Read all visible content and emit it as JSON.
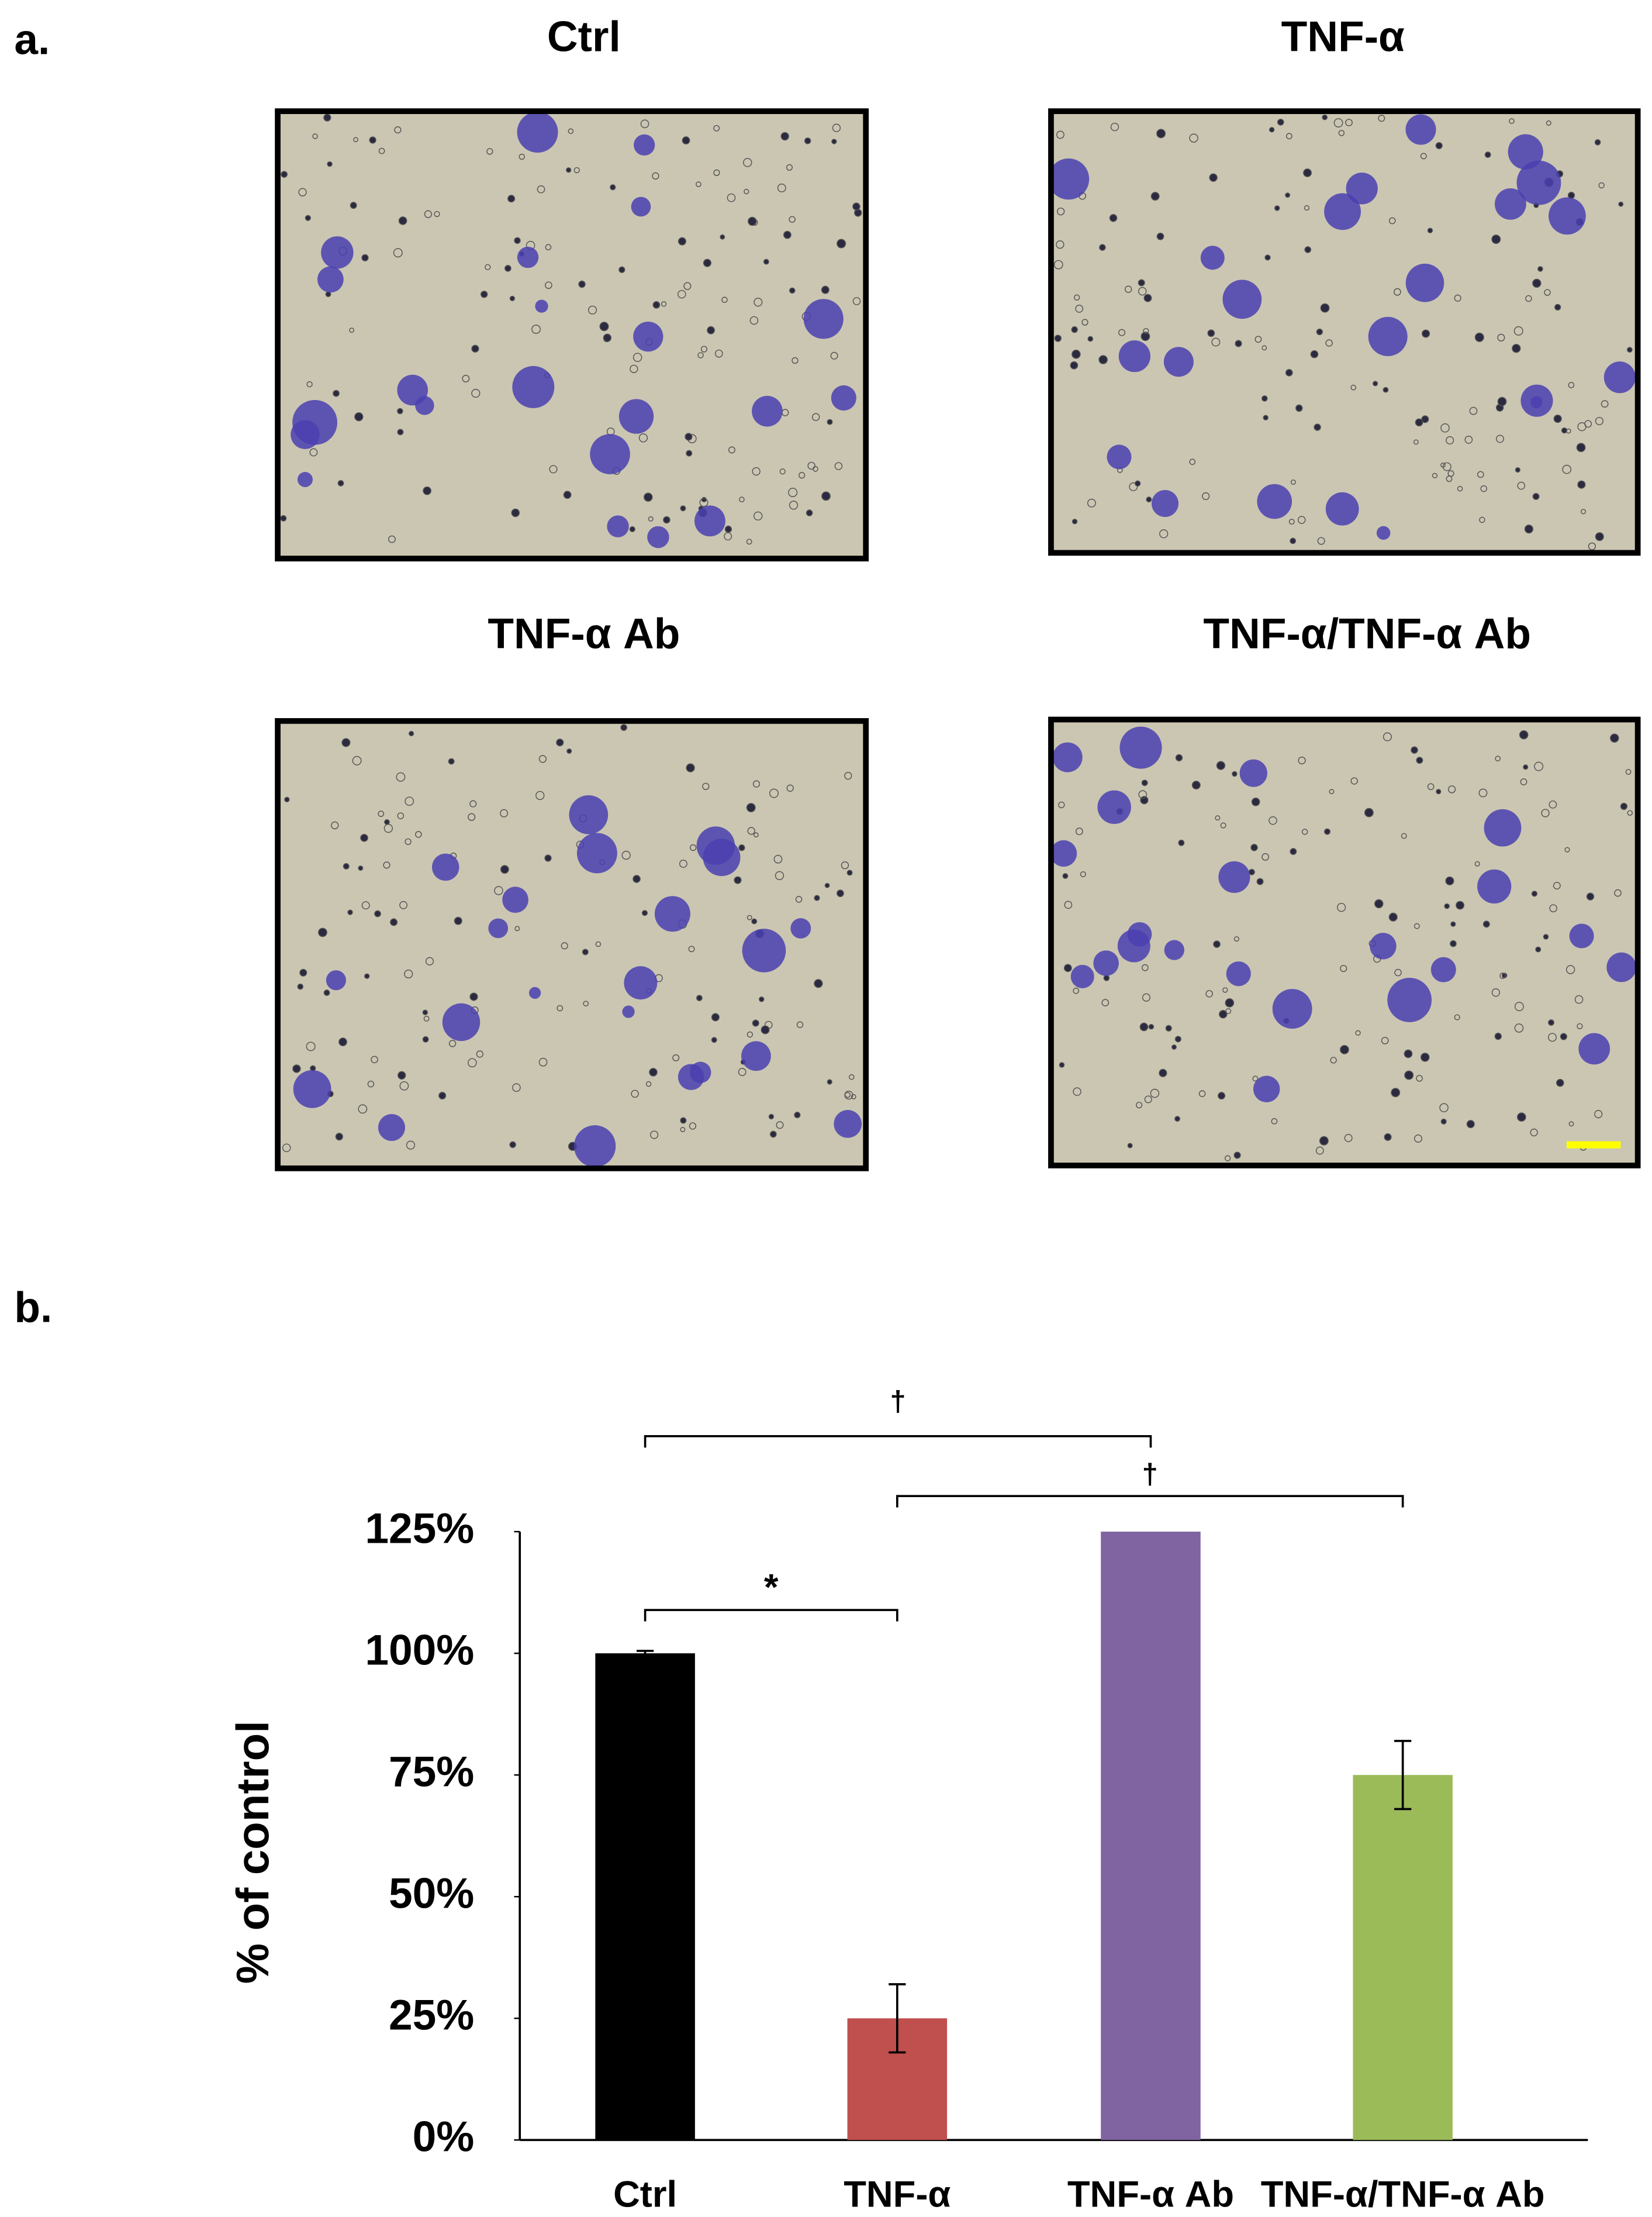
{
  "panel_a": {
    "label": "a.",
    "titles": [
      "Ctrl",
      "TNF-α",
      "TNF-α Ab",
      "TNF-α/TNF-α Ab"
    ]
  },
  "panel_b_label": "b.",
  "chart_data": {
    "type": "bar",
    "y_label": "% of control",
    "categories": [
      "Ctrl",
      "TNF-α",
      "TNF-α Ab",
      "TNF-α/TNF-α Ab"
    ],
    "values": [
      100,
      25,
      125,
      75
    ],
    "errors": [
      0.5,
      7,
      0,
      7
    ],
    "colors": [
      "#000000",
      "#c0504d",
      "#8064a2",
      "#9bbb59"
    ],
    "ylim": [
      0,
      125
    ],
    "yticks": [
      {
        "value": 0,
        "label": "0%"
      },
      {
        "value": 25,
        "label": "25%"
      },
      {
        "value": 50,
        "label": "50%"
      },
      {
        "value": 75,
        "label": "75%"
      },
      {
        "value": 100,
        "label": "100%"
      },
      {
        "value": 125,
        "label": "125%"
      }
    ],
    "annotations": [
      "*",
      "†",
      "†"
    ]
  }
}
